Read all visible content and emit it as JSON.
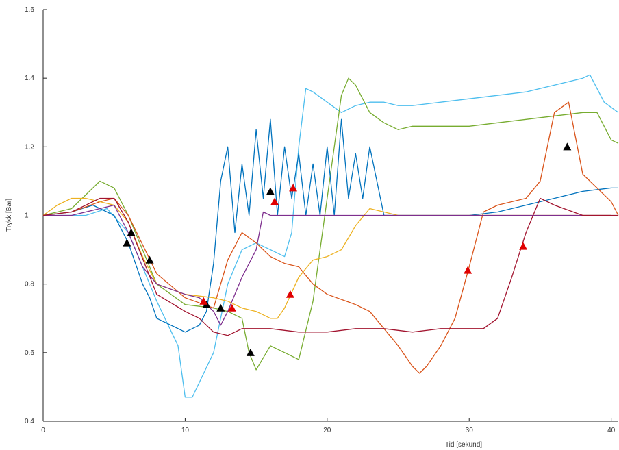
{
  "chart_data": {
    "type": "line",
    "title": "",
    "xlabel": "Tid [sekund]",
    "ylabel": "Trykk [Bar]",
    "xlim": [
      0,
      40.5
    ],
    "ylim": [
      0.4,
      1.6
    ],
    "xticks": [
      0,
      10,
      20,
      30,
      40
    ],
    "yticks": [
      0.4,
      0.6,
      0.8,
      1.0,
      1.2,
      1.4,
      1.6
    ],
    "xtick_labels": [
      "0",
      "10",
      "20",
      "30",
      "40"
    ],
    "ytick_labels": [
      "0.4",
      "0.6",
      "0.8",
      "1",
      "1.2",
      "1.4",
      "1.6"
    ],
    "grid": false,
    "legend": "none",
    "series": [
      {
        "color": "#4DBEEE",
        "x": [
          0,
          3,
          4.5,
          6,
          8,
          9.5,
          10,
          10.5,
          12,
          13,
          14,
          15,
          16,
          17,
          17.5,
          18,
          18.5,
          19,
          20,
          21,
          22,
          23,
          24,
          25,
          26,
          28,
          30,
          32,
          34,
          36,
          38,
          38.5,
          39.5,
          40.5
        ],
        "y": [
          1.0,
          1.0,
          1.02,
          0.95,
          0.75,
          0.62,
          0.47,
          0.47,
          0.6,
          0.8,
          0.9,
          0.92,
          0.9,
          0.88,
          0.95,
          1.2,
          1.37,
          1.36,
          1.33,
          1.3,
          1.32,
          1.33,
          1.33,
          1.32,
          1.32,
          1.33,
          1.34,
          1.35,
          1.36,
          1.38,
          1.4,
          1.41,
          1.33,
          1.3
        ]
      },
      {
        "color": "#77AC30",
        "x": [
          0,
          2,
          3,
          4,
          5,
          6,
          7,
          8,
          10,
          12,
          13,
          14,
          14.5,
          15,
          16,
          17,
          18,
          19,
          20,
          21,
          21.5,
          22,
          23,
          24,
          25,
          26,
          28,
          30,
          32,
          34,
          36,
          38,
          39,
          40,
          40.5
        ],
        "y": [
          1.0,
          1.02,
          1.06,
          1.1,
          1.08,
          1.0,
          0.9,
          0.8,
          0.74,
          0.73,
          0.72,
          0.7,
          0.6,
          0.55,
          0.62,
          0.6,
          0.58,
          0.75,
          1.05,
          1.35,
          1.4,
          1.38,
          1.3,
          1.27,
          1.25,
          1.26,
          1.26,
          1.26,
          1.27,
          1.28,
          1.29,
          1.3,
          1.3,
          1.22,
          1.21
        ]
      },
      {
        "color": "#0072BD",
        "x": [
          0,
          2,
          3.5,
          5,
          6,
          7,
          7.5,
          8,
          9,
          10,
          11,
          11.5,
          12,
          12.5,
          13,
          13.5,
          14,
          14.5,
          15,
          15.5,
          16,
          16.5,
          17,
          17.5,
          18,
          18.5,
          19,
          19.5,
          20,
          20.5,
          21,
          21.5,
          22,
          22.5,
          23,
          23.5,
          24,
          25,
          26,
          27,
          28,
          29,
          30,
          32,
          34,
          36,
          38,
          40,
          40.5
        ],
        "y": [
          1.0,
          1.01,
          1.03,
          1.0,
          0.92,
          0.8,
          0.76,
          0.7,
          0.68,
          0.66,
          0.68,
          0.72,
          0.86,
          1.1,
          1.2,
          0.95,
          1.15,
          1.0,
          1.25,
          1.05,
          1.28,
          1.0,
          1.2,
          1.05,
          1.18,
          1.0,
          1.15,
          1.0,
          1.2,
          1.0,
          1.28,
          1.05,
          1.18,
          1.05,
          1.2,
          1.1,
          1.0,
          1.0,
          1.0,
          1.0,
          1.0,
          1.0,
          1.0,
          1.01,
          1.03,
          1.05,
          1.07,
          1.08,
          1.08
        ]
      },
      {
        "color": "#D95319",
        "x": [
          0,
          2,
          4,
          5,
          6,
          8,
          10,
          12,
          13,
          14,
          15,
          16,
          17,
          18,
          19,
          20,
          22,
          23,
          24,
          25,
          26,
          26.5,
          27,
          28,
          29,
          30,
          31,
          32,
          34,
          35,
          36,
          37,
          38,
          39,
          40,
          40.5
        ],
        "y": [
          1.0,
          1.01,
          1.04,
          1.05,
          1.0,
          0.83,
          0.76,
          0.73,
          0.87,
          0.95,
          0.92,
          0.88,
          0.86,
          0.85,
          0.8,
          0.77,
          0.74,
          0.72,
          0.67,
          0.62,
          0.56,
          0.54,
          0.56,
          0.62,
          0.7,
          0.85,
          1.01,
          1.03,
          1.05,
          1.1,
          1.3,
          1.33,
          1.12,
          1.08,
          1.04,
          1.0
        ]
      },
      {
        "color": "#EDB120",
        "x": [
          0,
          1,
          2,
          3,
          4,
          5,
          6,
          7,
          8,
          10,
          12,
          13,
          14,
          15,
          16,
          16.5,
          17,
          18,
          19,
          20,
          21,
          22,
          23,
          24,
          25,
          26,
          28,
          30,
          32,
          34,
          36,
          38,
          40
        ],
        "y": [
          1.0,
          1.03,
          1.05,
          1.05,
          1.04,
          1.03,
          0.98,
          0.88,
          0.8,
          0.77,
          0.76,
          0.75,
          0.73,
          0.72,
          0.7,
          0.7,
          0.73,
          0.82,
          0.87,
          0.88,
          0.9,
          0.97,
          1.02,
          1.01,
          1.0,
          1.0,
          1.0,
          1.0,
          1.0,
          1.0,
          1.0,
          1.0,
          1.0
        ]
      },
      {
        "color": "#7E2F8E",
        "x": [
          0,
          2,
          4,
          5,
          6,
          7,
          8,
          10,
          11,
          12,
          12.5,
          13,
          14,
          15,
          15.5,
          16,
          16.5,
          17,
          18,
          19,
          20,
          21,
          22,
          24,
          26,
          28,
          30,
          32,
          34,
          36,
          38,
          40
        ],
        "y": [
          1.0,
          1.0,
          1.02,
          1.03,
          0.95,
          0.85,
          0.8,
          0.77,
          0.76,
          0.72,
          0.68,
          0.72,
          0.82,
          0.9,
          1.01,
          1.0,
          1.0,
          1.0,
          1.0,
          1.0,
          1.0,
          1.0,
          1.0,
          1.0,
          1.0,
          1.0,
          1.0,
          1.0,
          1.0,
          1.0,
          1.0,
          1.0
        ]
      },
      {
        "color": "#A2142F",
        "x": [
          0,
          2,
          4,
          5,
          6,
          8,
          10,
          11,
          12,
          13,
          14,
          16,
          18,
          20,
          22,
          24,
          26,
          28,
          30,
          31,
          32,
          33,
          34,
          35,
          36,
          38,
          40,
          40.5
        ],
        "y": [
          1.0,
          1.01,
          1.05,
          1.05,
          0.98,
          0.77,
          0.72,
          0.7,
          0.66,
          0.65,
          0.67,
          0.67,
          0.66,
          0.66,
          0.67,
          0.67,
          0.66,
          0.67,
          0.67,
          0.67,
          0.7,
          0.82,
          0.95,
          1.05,
          1.03,
          1.0,
          1.0,
          1.0
        ]
      }
    ],
    "markers_black": {
      "x": [
        5.9,
        6.2,
        7.5,
        11.5,
        12.5,
        14.6,
        16.0,
        36.9
      ],
      "y": [
        0.92,
        0.95,
        0.87,
        0.74,
        0.73,
        0.6,
        1.07,
        1.2
      ]
    },
    "markers_red": {
      "x": [
        11.3,
        13.3,
        16.3,
        17.4,
        17.6,
        29.9,
        33.8
      ],
      "y": [
        0.75,
        0.73,
        1.04,
        0.77,
        1.08,
        0.84,
        0.91
      ]
    }
  }
}
